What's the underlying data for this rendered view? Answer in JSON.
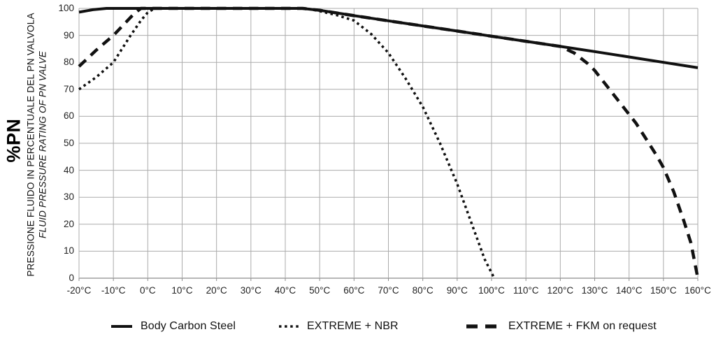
{
  "y_axis": {
    "label_main": "%PN",
    "label_line1": "PRESSIONE FLUIDO IN PERCENTUALE DEL PN VALVOLA",
    "label_line2": "FLUID PRESSURE RATING OF PN VALVE",
    "tick_labels": [
      "0",
      "10",
      "20",
      "30",
      "40",
      "50",
      "60",
      "70",
      "80",
      "90",
      "100"
    ]
  },
  "x_axis": {
    "tick_labels": [
      "-20°C",
      "-10°C",
      "0°C",
      "10°C",
      "20°C",
      "30°C",
      "40°C",
      "50°C",
      "60°C",
      "70°C",
      "80°C",
      "90°C",
      "100°C",
      "110°C",
      "120°C",
      "130°C",
      "140°C",
      "150°C",
      "160°C"
    ]
  },
  "legend": [
    {
      "label": "Body Carbon Steel",
      "style": "solid"
    },
    {
      "label": "EXTREME + NBR",
      "style": "dotted"
    },
    {
      "label": "EXTREME + FKM on request",
      "style": "dashed"
    }
  ],
  "colors": {
    "line": "#111111",
    "grid": "#ababab",
    "axis": "#8c8c8c",
    "text": "#222222"
  },
  "chart_data": {
    "type": "line",
    "title": "",
    "xlabel": "",
    "ylabel": "%PN — FLUID PRESSURE RATING OF PN VALVE",
    "x_range": [
      -20,
      160
    ],
    "ylim": [
      0,
      100
    ],
    "x_tick_step": 10,
    "y_tick_step": 10,
    "grid": true,
    "legend_position": "bottom",
    "series": [
      {
        "name": "Body Carbon Steel",
        "style": "solid",
        "points": [
          [
            -20,
            98.6
          ],
          [
            -16,
            99.5
          ],
          [
            -12,
            100
          ],
          [
            0,
            100
          ],
          [
            10,
            100
          ],
          [
            20,
            100
          ],
          [
            30,
            100
          ],
          [
            40,
            100
          ],
          [
            45,
            100
          ],
          [
            50,
            99.3
          ],
          [
            60,
            97.3
          ],
          [
            70,
            95.4
          ],
          [
            80,
            93.5
          ],
          [
            90,
            91.6
          ],
          [
            100,
            89.7
          ],
          [
            110,
            87.8
          ],
          [
            120,
            85.9
          ],
          [
            130,
            84.0
          ],
          [
            140,
            82.0
          ],
          [
            150,
            80.0
          ],
          [
            160,
            78.0
          ]
        ]
      },
      {
        "name": "EXTREME + NBR",
        "style": "dotted",
        "points": [
          [
            -20,
            70
          ],
          [
            -15,
            74.5
          ],
          [
            -10,
            80
          ],
          [
            -5,
            90
          ],
          [
            -2,
            95.5
          ],
          [
            0,
            98.5
          ],
          [
            2,
            100
          ],
          [
            10,
            100
          ],
          [
            20,
            100
          ],
          [
            30,
            100
          ],
          [
            40,
            100
          ],
          [
            46,
            100
          ],
          [
            50,
            99
          ],
          [
            55,
            97.5
          ],
          [
            60,
            95.5
          ],
          [
            65,
            90.5
          ],
          [
            70,
            83.5
          ],
          [
            75,
            74
          ],
          [
            80,
            63.5
          ],
          [
            85,
            50
          ],
          [
            90,
            35
          ],
          [
            95,
            17.5
          ],
          [
            98,
            7
          ],
          [
            100.8,
            0
          ]
        ]
      },
      {
        "name": "EXTREME + FKM on request",
        "style": "dashed",
        "points": [
          [
            -20,
            78.5
          ],
          [
            -15,
            84.5
          ],
          [
            -10,
            90
          ],
          [
            -7,
            94
          ],
          [
            -4,
            98
          ],
          [
            -2,
            100
          ],
          [
            0,
            100
          ],
          [
            10,
            100
          ],
          [
            20,
            100
          ],
          [
            30,
            100
          ],
          [
            40,
            100
          ],
          [
            45,
            100
          ],
          [
            50,
            99.3
          ],
          [
            60,
            97.3
          ],
          [
            70,
            95.4
          ],
          [
            80,
            93.5
          ],
          [
            90,
            91.6
          ],
          [
            100,
            89.7
          ],
          [
            110,
            87.8
          ],
          [
            120,
            85.9
          ],
          [
            124,
            83.5
          ],
          [
            128,
            79.5
          ],
          [
            130,
            77
          ],
          [
            134,
            70.5
          ],
          [
            138,
            64
          ],
          [
            142,
            57.5
          ],
          [
            146,
            49.5
          ],
          [
            148,
            45.5
          ],
          [
            150,
            41
          ],
          [
            153,
            32
          ],
          [
            156,
            21
          ],
          [
            158,
            13
          ],
          [
            160,
            0
          ]
        ]
      }
    ]
  }
}
